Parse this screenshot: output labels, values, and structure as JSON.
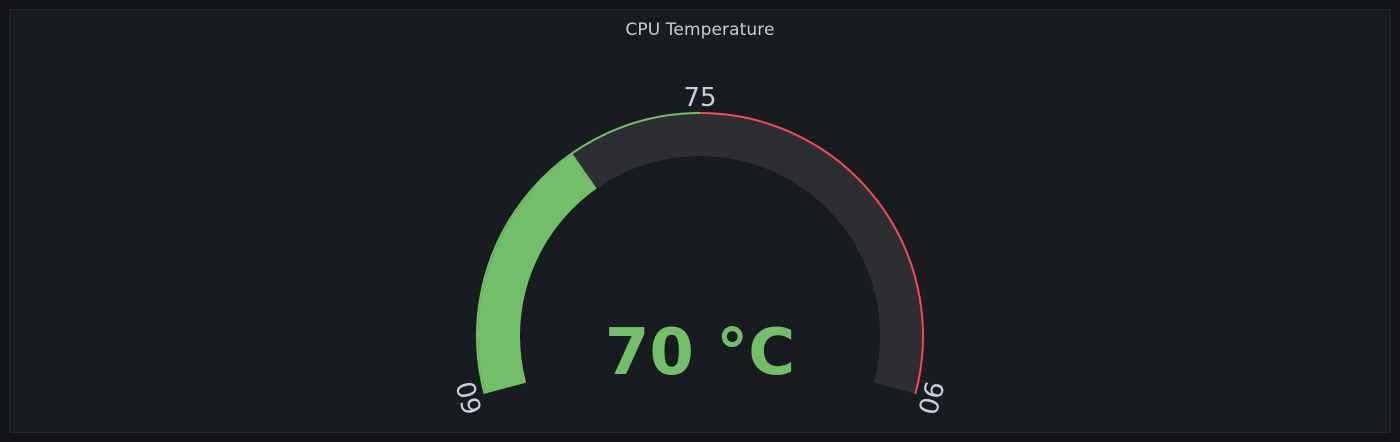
{
  "panel": {
    "title": "CPU Temperature"
  },
  "gauge": {
    "value": 70,
    "unit": "°C",
    "value_text": "70 °C",
    "min": 60,
    "max": 90,
    "threshold_base_color": "#73bf69",
    "thresholds": [
      {
        "value": 75,
        "color": "#f2495c"
      }
    ],
    "tick_labels": [
      "60",
      "75",
      "90"
    ],
    "value_color": "#73bf69",
    "track_color": "#2d2e31"
  }
}
